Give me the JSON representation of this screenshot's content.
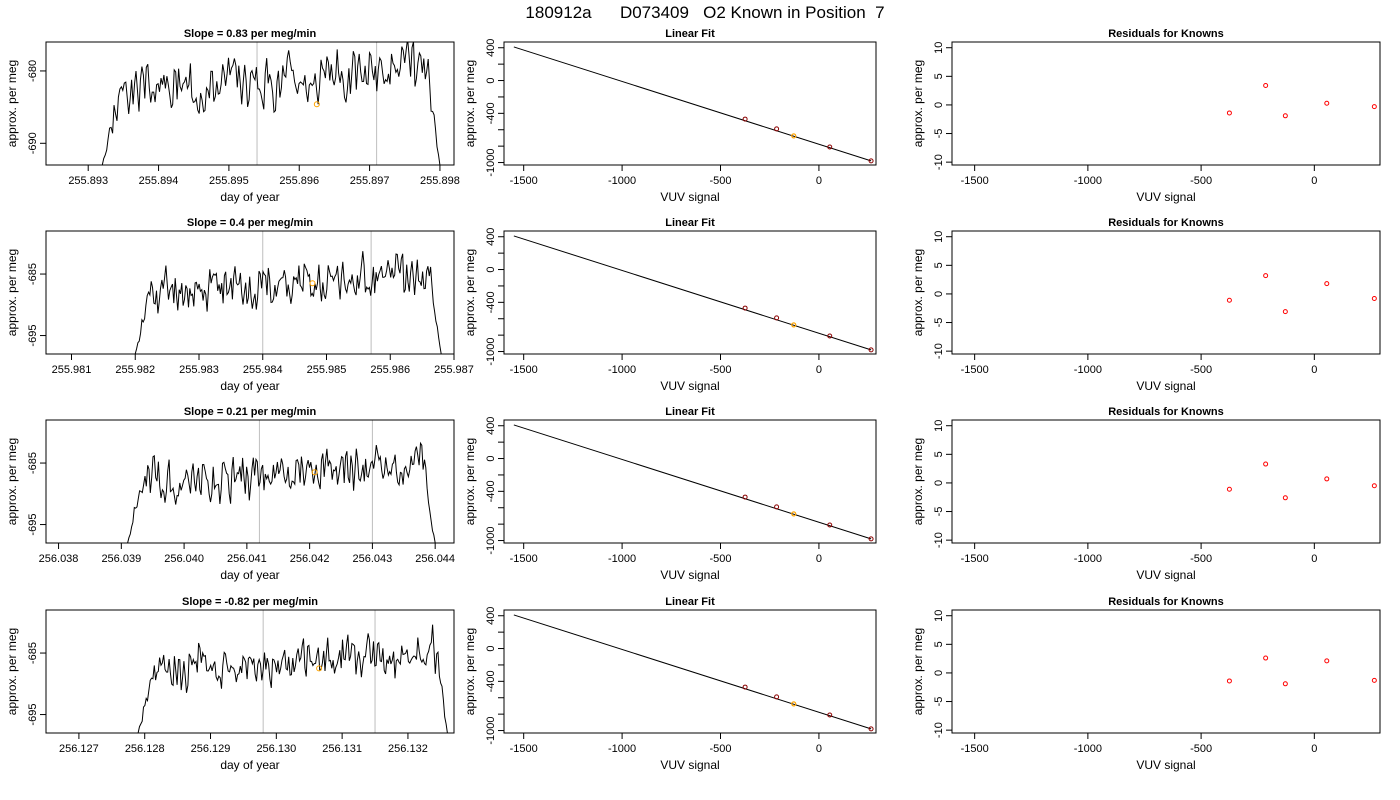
{
  "page_title": "180912a      D073409   O2 Known in Position  7",
  "colors": {
    "line": "#000000",
    "frame": "#000000",
    "vline": "#bebebe",
    "highlight": "#ffa500",
    "residual_point": "#ff0000",
    "fit_point": "#8b0000"
  },
  "chart_data": [
    {
      "type": "line",
      "title": "Slope =  0.83  per meg/min",
      "xlabel": "day of year",
      "ylabel": "approx. per meg",
      "xlim": [
        255.8924,
        255.8982
      ],
      "ylim": [
        -693,
        -676
      ],
      "x_ticks": [
        "255.893",
        "255.894",
        "255.895",
        "255.896",
        "255.897",
        "255.898"
      ],
      "y_ticks": [
        "-690",
        "-680"
      ],
      "vertical_lines_x": [
        255.8954,
        255.8971
      ],
      "series": [
        {
          "x_start": 255.8932,
          "x_end": 255.898,
          "start_value": -693,
          "end_value": -693,
          "level": -683,
          "spread": 2.3,
          "amplitude": 2.6,
          "trend": 3.5,
          "seed": 3
        }
      ],
      "highlight_point": {
        "x": 255.89625,
        "y": -684.6
      }
    },
    {
      "type": "scatter",
      "title": "Linear Fit",
      "xlabel": "VUV signal",
      "ylabel": "approx. per meg",
      "xlim": [
        -1600,
        290
      ],
      "ylim": [
        -1030,
        470
      ],
      "x_ticks": [
        "-1500",
        "-1000",
        "-500",
        "0"
      ],
      "y_ticks": [
        "-1000",
        "-400",
        "0",
        "400"
      ],
      "fit_line": {
        "x": [
          -1550,
          265
        ],
        "y": [
          410,
          -980
        ]
      },
      "points": [
        {
          "x": -375,
          "y": -470
        },
        {
          "x": -215,
          "y": -590
        },
        {
          "x": 55,
          "y": -810
        },
        {
          "x": 265,
          "y": -980
        }
      ],
      "highlight_point": {
        "x": -128,
        "y": -675
      }
    },
    {
      "type": "scatter",
      "title": "Residuals for Knowns",
      "xlabel": "VUV signal",
      "ylabel": "approx. per meg",
      "xlim": [
        -1600,
        290
      ],
      "ylim": [
        -10.5,
        11
      ],
      "x_ticks": [
        "-1500",
        "-1000",
        "-500",
        "0"
      ],
      "y_ticks": [
        "-10",
        "-5",
        "0",
        "5",
        "10"
      ],
      "points": [
        {
          "x": -375,
          "y": -1.4
        },
        {
          "x": -215,
          "y": 3.4
        },
        {
          "x": -128,
          "y": -1.9
        },
        {
          "x": 55,
          "y": 0.3
        },
        {
          "x": 265,
          "y": -0.3
        }
      ]
    },
    {
      "type": "line",
      "title": "Slope =  0.4  per meg/min",
      "xlabel": "day of year",
      "ylabel": "approx. per meg",
      "xlim": [
        255.9806,
        255.987
      ],
      "ylim": [
        -698,
        -678
      ],
      "x_ticks": [
        "255.981",
        "255.982",
        "255.983",
        "255.984",
        "255.985",
        "255.986",
        "255.987"
      ],
      "y_ticks": [
        "-695",
        "-685"
      ],
      "vertical_lines_x": [
        255.984,
        255.9857
      ],
      "series": [
        {
          "x_start": 255.982,
          "x_end": 255.9868,
          "start_value": -698,
          "end_value": -698,
          "level": -688,
          "spread": 2.4,
          "amplitude": 2.6,
          "trend": 3.2,
          "seed": 11
        }
      ],
      "highlight_point": {
        "x": 255.98478,
        "y": -686.5
      }
    },
    {
      "type": "scatter",
      "title": "Linear Fit",
      "xlabel": "VUV signal",
      "ylabel": "approx. per meg",
      "xlim": [
        -1600,
        290
      ],
      "ylim": [
        -1030,
        470
      ],
      "x_ticks": [
        "-1500",
        "-1000",
        "-500",
        "0"
      ],
      "y_ticks": [
        "-1000",
        "-400",
        "0",
        "400"
      ],
      "fit_line": {
        "x": [
          -1550,
          265
        ],
        "y": [
          410,
          -980
        ]
      },
      "points": [
        {
          "x": -375,
          "y": -470
        },
        {
          "x": -215,
          "y": -590
        },
        {
          "x": 55,
          "y": -810
        },
        {
          "x": 265,
          "y": -980
        }
      ],
      "highlight_point": {
        "x": -128,
        "y": -675
      }
    },
    {
      "type": "scatter",
      "title": "Residuals for Knowns",
      "xlabel": "VUV signal",
      "ylabel": "approx. per meg",
      "xlim": [
        -1600,
        290
      ],
      "ylim": [
        -10.5,
        11
      ],
      "x_ticks": [
        "-1500",
        "-1000",
        "-500",
        "0"
      ],
      "y_ticks": [
        "-10",
        "-5",
        "0",
        "5",
        "10"
      ],
      "points": [
        {
          "x": -375,
          "y": -1.1
        },
        {
          "x": -215,
          "y": 3.2
        },
        {
          "x": -128,
          "y": -3.1
        },
        {
          "x": 55,
          "y": 1.8
        },
        {
          "x": 265,
          "y": -0.8
        }
      ]
    },
    {
      "type": "line",
      "title": "Slope =  0.21  per meg/min",
      "xlabel": "day of year",
      "ylabel": "approx. per meg",
      "xlim": [
        256.0378,
        256.0443
      ],
      "ylim": [
        -698,
        -678
      ],
      "x_ticks": [
        "256.038",
        "256.039",
        "256.040",
        "256.041",
        "256.042",
        "256.043",
        "256.044"
      ],
      "y_ticks": [
        "-695",
        "-685"
      ],
      "vertical_lines_x": [
        256.0412,
        256.043
      ],
      "series": [
        {
          "x_start": 256.0391,
          "x_end": 256.044,
          "start_value": -698,
          "end_value": -698,
          "level": -688,
          "spread": 2.4,
          "amplitude": 2.6,
          "trend": 3.0,
          "seed": 21
        }
      ],
      "highlight_point": {
        "x": 256.04208,
        "y": -686.5
      }
    },
    {
      "type": "scatter",
      "title": "Linear Fit",
      "xlabel": "VUV signal",
      "ylabel": "approx. per meg",
      "xlim": [
        -1600,
        290
      ],
      "ylim": [
        -1030,
        470
      ],
      "x_ticks": [
        "-1500",
        "-1000",
        "-500",
        "0"
      ],
      "y_ticks": [
        "-1000",
        "-400",
        "0",
        "400"
      ],
      "fit_line": {
        "x": [
          -1550,
          265
        ],
        "y": [
          410,
          -980
        ]
      },
      "points": [
        {
          "x": -375,
          "y": -470
        },
        {
          "x": -215,
          "y": -590
        },
        {
          "x": 55,
          "y": -810
        },
        {
          "x": 265,
          "y": -980
        }
      ],
      "highlight_point": {
        "x": -128,
        "y": -675
      }
    },
    {
      "type": "scatter",
      "title": "Residuals for Knowns",
      "xlabel": "VUV signal",
      "ylabel": "approx. per meg",
      "xlim": [
        -1600,
        290
      ],
      "ylim": [
        -10.5,
        11
      ],
      "x_ticks": [
        "-1500",
        "-1000",
        "-500",
        "0"
      ],
      "y_ticks": [
        "-10",
        "-5",
        "0",
        "5",
        "10"
      ],
      "points": [
        {
          "x": -375,
          "y": -1.1
        },
        {
          "x": -215,
          "y": 3.3
        },
        {
          "x": -128,
          "y": -2.6
        },
        {
          "x": 55,
          "y": 0.7
        },
        {
          "x": 265,
          "y": -0.5
        }
      ]
    },
    {
      "type": "line",
      "title": "Slope =  -0.82  per meg/min",
      "xlabel": "day of year",
      "ylabel": "approx. per meg",
      "xlim": [
        256.1265,
        256.1327
      ],
      "ylim": [
        -698,
        -678
      ],
      "x_ticks": [
        "256.127",
        "256.128",
        "256.129",
        "256.130",
        "256.131",
        "256.132"
      ],
      "y_ticks": [
        "-695",
        "-685"
      ],
      "vertical_lines_x": [
        256.1298,
        256.1315
      ],
      "series": [
        {
          "x_start": 256.1279,
          "x_end": 256.1326,
          "start_value": -698,
          "end_value": -698,
          "level": -688,
          "spread": 2.4,
          "amplitude": 2.6,
          "trend": 3.0,
          "seed": 33
        }
      ],
      "highlight_point": {
        "x": 256.13065,
        "y": -687.5
      }
    },
    {
      "type": "scatter",
      "title": "Linear Fit",
      "xlabel": "VUV signal",
      "ylabel": "approx. per meg",
      "xlim": [
        -1600,
        290
      ],
      "ylim": [
        -1030,
        470
      ],
      "x_ticks": [
        "-1500",
        "-1000",
        "-500",
        "0"
      ],
      "y_ticks": [
        "-1000",
        "-400",
        "0",
        "400"
      ],
      "fit_line": {
        "x": [
          -1550,
          265
        ],
        "y": [
          410,
          -980
        ]
      },
      "points": [
        {
          "x": -375,
          "y": -470
        },
        {
          "x": -215,
          "y": -590
        },
        {
          "x": 55,
          "y": -810
        },
        {
          "x": 265,
          "y": -980
        }
      ],
      "highlight_point": {
        "x": -128,
        "y": -675
      }
    },
    {
      "type": "scatter",
      "title": "Residuals for Knowns",
      "xlabel": "VUV signal",
      "ylabel": "approx. per meg",
      "xlim": [
        -1600,
        290
      ],
      "ylim": [
        -10.5,
        11
      ],
      "x_ticks": [
        "-1500",
        "-1000",
        "-500",
        "0"
      ],
      "y_ticks": [
        "-10",
        "-5",
        "0",
        "5",
        "10"
      ],
      "points": [
        {
          "x": -375,
          "y": -1.4
        },
        {
          "x": -215,
          "y": 2.6
        },
        {
          "x": -128,
          "y": -1.9
        },
        {
          "x": 55,
          "y": 2.1
        },
        {
          "x": 265,
          "y": -1.3
        }
      ]
    }
  ]
}
